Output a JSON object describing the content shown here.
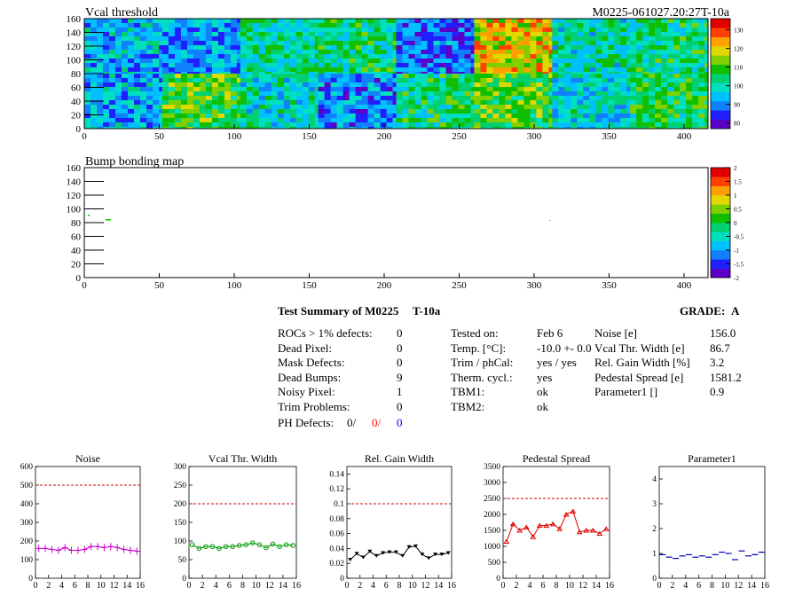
{
  "maps": [
    {
      "id": "vcal",
      "title": "Vcal threshold",
      "module_id": "M0225-061027.20:27T-10a",
      "x_ticks": [
        "0",
        "50",
        "100",
        "150",
        "200",
        "250",
        "300",
        "350",
        "400"
      ],
      "y_ticks": [
        "0",
        "20",
        "40",
        "60",
        "80",
        "100",
        "120",
        "140",
        "160"
      ],
      "palette_ticks": [
        "80",
        "90",
        "100",
        "110",
        "120",
        "130"
      ]
    },
    {
      "id": "bump",
      "title": "Bump bonding map",
      "x_ticks": [
        "0",
        "50",
        "100",
        "150",
        "200",
        "250",
        "300",
        "350",
        "400"
      ],
      "y_ticks": [
        "0",
        "20",
        "40",
        "60",
        "80",
        "100",
        "120",
        "140",
        "160"
      ],
      "palette_ticks": [
        "-2",
        "-1.5",
        "-1",
        "-0.5",
        "0",
        "0.5",
        "1",
        "1.5",
        "2"
      ]
    }
  ],
  "summary": {
    "title": "Test Summary of M0225",
    "temp_tag": "T-10a",
    "grade_label": "GRADE:",
    "grade": "A",
    "defects": [
      {
        "label": "ROCs > 1% defects:",
        "value": "0"
      },
      {
        "label": "Dead Pixel:",
        "value": "0"
      },
      {
        "label": "Mask Defects:",
        "value": "0"
      },
      {
        "label": "Dead Bumps:",
        "value": "9"
      },
      {
        "label": "Noisy Pixel:",
        "value": "1"
      },
      {
        "label": "Trim Problems:",
        "value": "0"
      }
    ],
    "ph_defects": {
      "label": "PH Defects:",
      "v1": "0/",
      "v2": "0/",
      "v3": "0",
      "c1": "#000000",
      "c2": "#ff0000",
      "c3": "#0000ff"
    },
    "conditions": [
      {
        "label": "Tested on:",
        "value": "Feb 6"
      },
      {
        "label": "Temp. [°C]:",
        "value": "-10.0 +- 0.0"
      },
      {
        "label": "Trim / phCal:",
        "value": "yes / yes"
      },
      {
        "label": "Therm. cycl.:",
        "value": "yes"
      },
      {
        "label": "TBM1:",
        "value": "ok"
      },
      {
        "label": "TBM2:",
        "value": "ok"
      }
    ],
    "parameters": [
      {
        "label": "Noise [e]",
        "value": "156.0"
      },
      {
        "label": "Vcal Thr. Width [e]",
        "value": "86.7"
      },
      {
        "label": "Rel. Gain Width [%]",
        "value": "3.2"
      },
      {
        "label": "Pedestal Spread [e]",
        "value": "1581.2"
      },
      {
        "label": "Parameter1 []",
        "value": "0.9"
      }
    ]
  },
  "chart_data": [
    {
      "type": "line",
      "title": "Noise",
      "color": "#cc00cc",
      "marker": "cross",
      "x": [
        0,
        1,
        2,
        3,
        4,
        5,
        6,
        7,
        8,
        9,
        10,
        11,
        12,
        13,
        14,
        15
      ],
      "values": [
        160,
        160,
        155,
        150,
        165,
        150,
        150,
        155,
        170,
        170,
        165,
        170,
        165,
        155,
        150,
        145
      ],
      "limit": 500,
      "ylim": [
        0,
        600
      ],
      "y_ticks": [
        "0",
        "100",
        "200",
        "300",
        "400",
        "500",
        "600"
      ],
      "x_ticks": [
        "0",
        "2",
        "4",
        "6",
        "8",
        "10",
        "12",
        "14",
        "16"
      ]
    },
    {
      "type": "line",
      "title": "Vcal Thr. Width",
      "color": "#009900",
      "marker": "circle",
      "x": [
        0,
        1,
        2,
        3,
        4,
        5,
        6,
        7,
        8,
        9,
        10,
        11,
        12,
        13,
        14,
        15
      ],
      "values": [
        90,
        80,
        85,
        85,
        80,
        85,
        85,
        88,
        90,
        95,
        90,
        82,
        92,
        85,
        90,
        88
      ],
      "limit": 200,
      "ylim": [
        0,
        300
      ],
      "y_ticks": [
        "0",
        "50",
        "100",
        "150",
        "200",
        "250",
        "300"
      ],
      "x_ticks": [
        "0",
        "2",
        "4",
        "6",
        "8",
        "10",
        "12",
        "14",
        "16"
      ]
    },
    {
      "type": "line",
      "title": "Rel. Gain Width",
      "color": "#000000",
      "marker": "triangle-down",
      "x": [
        0,
        1,
        2,
        3,
        4,
        5,
        6,
        7,
        8,
        9,
        10,
        11,
        12,
        13,
        14,
        15
      ],
      "values": [
        0.025,
        0.033,
        0.028,
        0.036,
        0.03,
        0.034,
        0.035,
        0.035,
        0.03,
        0.042,
        0.043,
        0.032,
        0.027,
        0.032,
        0.032,
        0.034
      ],
      "limit": 0.1,
      "ylim": [
        0,
        0.15
      ],
      "y_ticks": [
        "0",
        "0.02",
        "0.04",
        "0.06",
        "0.08",
        "0.1",
        "0.12",
        "0.14"
      ],
      "x_ticks": [
        "0",
        "2",
        "4",
        "6",
        "8",
        "10",
        "12",
        "14",
        "16"
      ]
    },
    {
      "type": "line",
      "title": "Pedestal Spread",
      "color": "#dd0000",
      "marker": "triangle-up",
      "x": [
        0,
        1,
        2,
        3,
        4,
        5,
        6,
        7,
        8,
        9,
        10,
        11,
        12,
        13,
        14,
        15
      ],
      "values": [
        1150,
        1700,
        1500,
        1600,
        1300,
        1650,
        1650,
        1700,
        1550,
        2000,
        2100,
        1450,
        1500,
        1500,
        1400,
        1550
      ],
      "limit": 2500,
      "ylim": [
        0,
        3500
      ],
      "y_ticks": [
        "0",
        "500",
        "1000",
        "1500",
        "2000",
        "2500",
        "3000",
        "3500"
      ],
      "x_ticks": [
        "0",
        "2",
        "4",
        "6",
        "8",
        "10",
        "12",
        "14",
        "16"
      ]
    },
    {
      "type": "scatter",
      "title": "Parameter1",
      "color": "#0000bb",
      "marker": "hbar",
      "x": [
        0,
        1,
        2,
        3,
        4,
        5,
        6,
        7,
        8,
        9,
        10,
        11,
        12,
        13,
        14,
        15
      ],
      "values": [
        0.95,
        0.85,
        0.8,
        0.9,
        0.95,
        0.85,
        0.9,
        0.85,
        0.95,
        1.05,
        1.0,
        0.75,
        1.1,
        0.9,
        0.95,
        1.05
      ],
      "ylim": [
        0,
        4.5
      ],
      "y_ticks": [
        "0",
        "1",
        "2",
        "3",
        "4"
      ],
      "x_ticks": [
        "0",
        "2",
        "4",
        "6",
        "8",
        "10",
        "12",
        "14",
        "16"
      ]
    }
  ]
}
